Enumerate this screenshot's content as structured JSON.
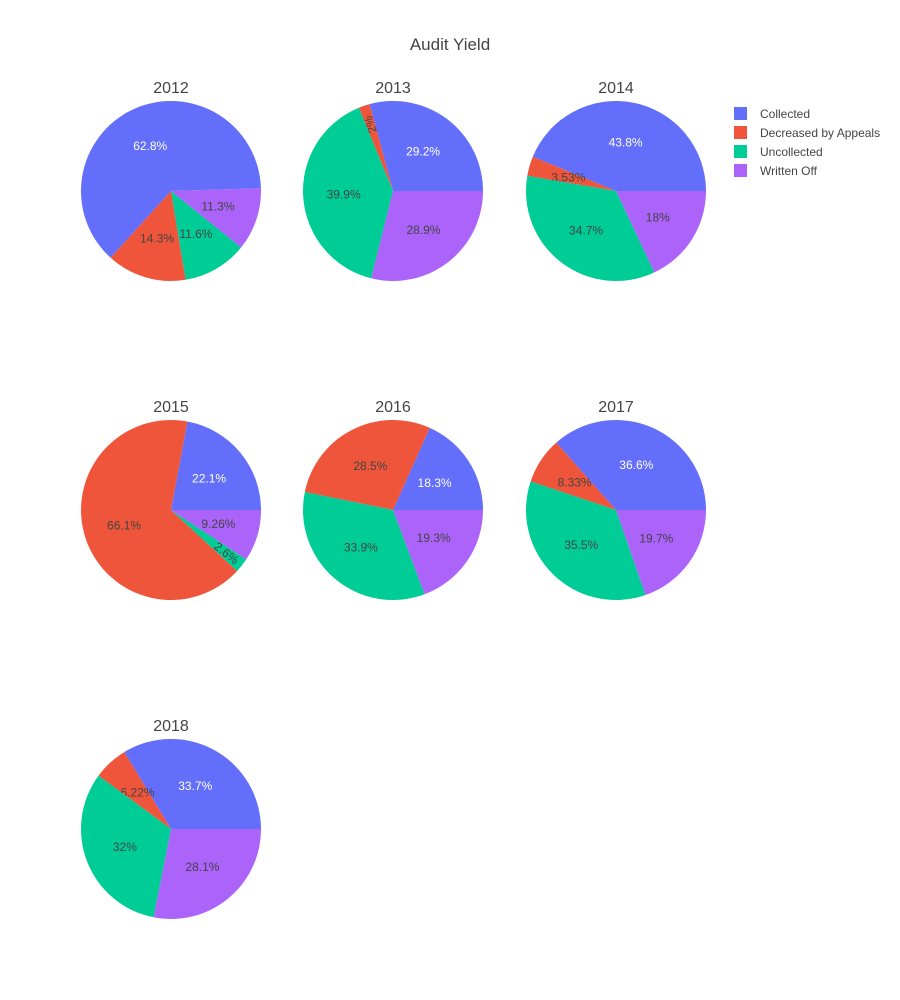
{
  "chart_data": {
    "type": "pie",
    "title": "Audit Yield",
    "legend": {
      "position": "top-right",
      "entries": [
        {
          "label": "Collected",
          "color": "#636efa"
        },
        {
          "label": "Decreased by Appeals",
          "color": "#ef553b"
        },
        {
          "label": "Uncollected",
          "color": "#00cc96"
        },
        {
          "label": "Written Off",
          "color": "#ab63fa"
        }
      ]
    },
    "pies": [
      {
        "title": "2012",
        "values": [
          62.8,
          14.3,
          11.6,
          11.3
        ],
        "labels": [
          "62.8%",
          "14.3%",
          "11.6%",
          "11.3%"
        ]
      },
      {
        "title": "2013",
        "values": [
          29.2,
          2.0,
          39.9,
          28.9
        ],
        "labels": [
          "29.2%",
          "2%",
          "39.9%",
          "28.9%"
        ]
      },
      {
        "title": "2014",
        "values": [
          43.8,
          3.53,
          34.7,
          18.0
        ],
        "labels": [
          "43.8%",
          "3.53%",
          "34.7%",
          "18%"
        ]
      },
      {
        "title": "2015",
        "values": [
          22.1,
          66.1,
          2.6,
          9.26
        ],
        "labels": [
          "22.1%",
          "66.1%",
          "2.6%",
          "9.26%"
        ]
      },
      {
        "title": "2016",
        "values": [
          18.3,
          28.5,
          33.9,
          19.3
        ],
        "labels": [
          "18.3%",
          "28.5%",
          "33.9%",
          "19.3%"
        ]
      },
      {
        "title": "2017",
        "values": [
          36.6,
          8.33,
          35.5,
          19.7
        ],
        "labels": [
          "36.6%",
          "8.33%",
          "35.5%",
          "19.7%"
        ]
      },
      {
        "title": "2018",
        "values": [
          33.7,
          6.22,
          32.0,
          28.1
        ],
        "labels": [
          "33.7%",
          "6.22%",
          "32%",
          "28.1%"
        ]
      }
    ]
  }
}
